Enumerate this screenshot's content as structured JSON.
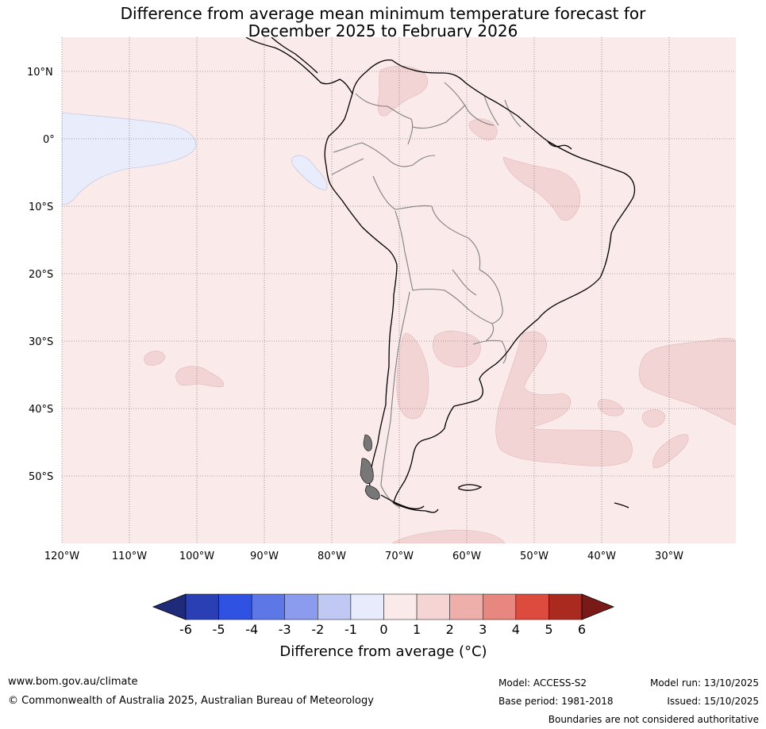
{
  "title": {
    "line1": "Difference from average mean minimum temperature forecast for",
    "line2": "December 2025 to February 2026"
  },
  "map": {
    "region": "South America",
    "lat_labels": [
      "10°N",
      "0°",
      "10°S",
      "20°S",
      "30°S",
      "40°S",
      "50°S"
    ],
    "lon_labels": [
      "120°W",
      "110°W",
      "100°W",
      "90°W",
      "80°W",
      "70°W",
      "60°W",
      "50°W",
      "40°W",
      "30°W"
    ],
    "lon_range": [
      -120,
      -20
    ],
    "lat_range": [
      -60,
      15
    ],
    "background_category": "0 to 1",
    "colors": {
      "ocean_land_base": "#fbeaea",
      "warm_1_2": "#f3d4d4",
      "cool_-1_0": "#e8ecfb",
      "coast": "#000000",
      "borders": "#808080",
      "grid": "#555555"
    }
  },
  "legend": {
    "title": "Difference from average (°C)",
    "ticks": [
      "-6",
      "-5",
      "-4",
      "-3",
      "-2",
      "-1",
      "0",
      "1",
      "2",
      "3",
      "4",
      "5",
      "6"
    ],
    "colors": [
      "#1f2a78",
      "#2a3fb3",
      "#3052e3",
      "#5d77e6",
      "#8b9bee",
      "#c0c8f4",
      "#e8ebfb",
      "#fbeaea",
      "#f5d5d4",
      "#eeaeaa",
      "#e8877f",
      "#dc4b3d",
      "#aa2a20",
      "#7a1a18"
    ]
  },
  "footer": {
    "website": "www.bom.gov.au/climate",
    "copyright": "© Commonwealth of Australia 2025, Australian Bureau of Meteorology",
    "model": "Model: ACCESS-S2",
    "base_period": "Base period: 1981-2018",
    "model_run": "Model run: 13/10/2025",
    "issued": "Issued: 15/10/2025",
    "disclaimer": "Boundaries are not considered authoritative"
  }
}
